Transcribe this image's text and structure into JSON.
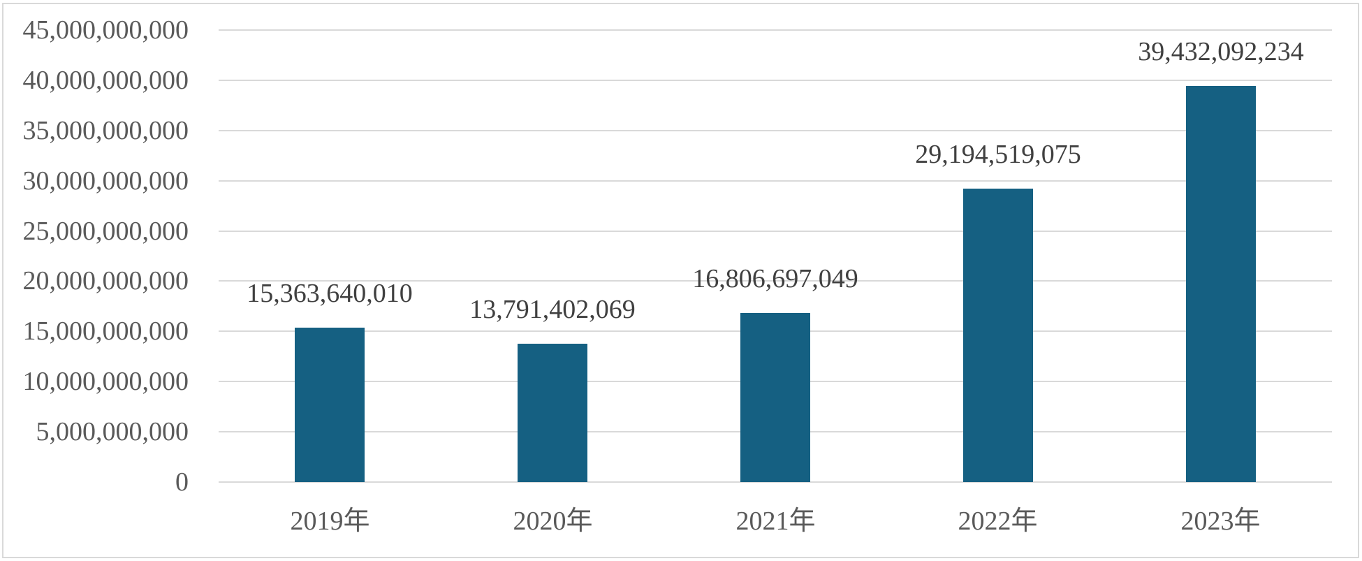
{
  "chart_data": {
    "type": "bar",
    "title": "",
    "categories": [
      "2019年",
      "2020年",
      "2021年",
      "2022年",
      "2023年"
    ],
    "values": [
      15363640010,
      13791402069,
      16806697049,
      29194519075,
      39432092234
    ],
    "value_labels": [
      "15,363,640,010",
      "13,791,402,069",
      "16,806,697,049",
      "29,194,519,075",
      "39,432,092,234"
    ],
    "xlabel": "",
    "ylabel": "",
    "ylim": [
      0,
      45000000000
    ],
    "y_tick_step": 5000000000,
    "y_ticks": [
      0,
      5000000000,
      10000000000,
      15000000000,
      20000000000,
      25000000000,
      30000000000,
      35000000000,
      40000000000,
      45000000000
    ],
    "y_tick_labels": [
      "0",
      "5,000,000,000",
      "10,000,000,000",
      "15,000,000,000",
      "20,000,000,000",
      "25,000,000,000",
      "30,000,000,000",
      "35,000,000,000",
      "40,000,000,000",
      "45,000,000,000"
    ],
    "grid": true,
    "legend_position": "none",
    "colors": {
      "bar_fill": "#156082",
      "gridline": "#D9D9D9",
      "frame_border": "#D9D9D9",
      "axis_tick_text": "#595959",
      "data_label_text": "#404040",
      "background": "#ffffff"
    }
  }
}
